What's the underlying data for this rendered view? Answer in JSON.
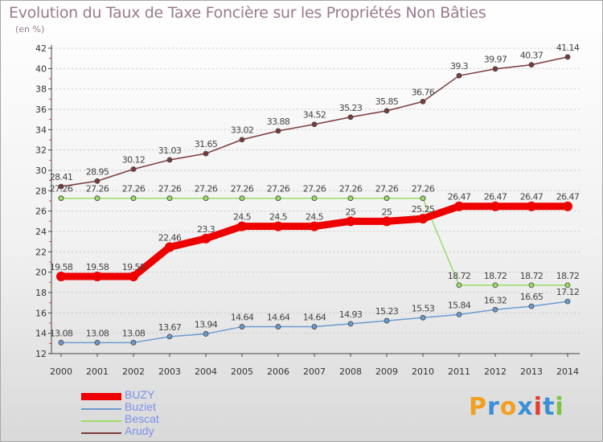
{
  "title": "Evolution du Taux de Taxe Foncière sur les Propriétés Non Bâties",
  "unit_label": "(en %)",
  "chart_data": {
    "type": "line",
    "title": "Evolution du Taux de Taxe Foncière sur les Propriétés Non Bâties",
    "ylabel": "(en %)",
    "xlabel": "",
    "x": [
      "2000",
      "2001",
      "2002",
      "2003",
      "2004",
      "2005",
      "2006",
      "2007",
      "2008",
      "2009",
      "2010",
      "2011",
      "2012",
      "2013",
      "2014"
    ],
    "ylim": [
      12,
      42
    ],
    "yticks": [
      12,
      14,
      16,
      18,
      20,
      22,
      24,
      26,
      28,
      30,
      32,
      34,
      36,
      38,
      40,
      42
    ],
    "grid": "horizontal dotted",
    "legend_position": "bottom-left",
    "series": [
      {
        "name": "BUZY",
        "color": "#ee0000",
        "values": [
          19.58,
          19.58,
          19.58,
          22.46,
          23.3,
          24.5,
          24.5,
          24.5,
          25,
          25,
          25.25,
          26.47,
          26.47,
          26.47,
          26.47
        ],
        "labels": [
          "19.58",
          "19.58",
          "19.58",
          "22.46",
          "23.3",
          "24.5",
          "24.5",
          "24.5",
          "25",
          "25",
          "25.25",
          "26.47",
          "26.47",
          "26.47",
          "26.47"
        ]
      },
      {
        "name": "Buziet",
        "color": "#6b9bd0",
        "values": [
          13.08,
          13.08,
          13.08,
          13.67,
          13.94,
          14.64,
          14.64,
          14.64,
          14.93,
          15.23,
          15.53,
          15.84,
          16.32,
          16.65,
          17.12
        ],
        "labels": [
          "13.08",
          "13.08",
          "13.08",
          "13.67",
          "13.94",
          "14.64",
          "14.64",
          "14.64",
          "14.93",
          "15.23",
          "15.53",
          "15.84",
          "16.32",
          "16.65",
          "17.12"
        ]
      },
      {
        "name": "Bescat",
        "color": "#99dd66",
        "values": [
          27.26,
          27.26,
          27.26,
          27.26,
          27.26,
          27.26,
          27.26,
          27.26,
          27.26,
          27.26,
          27.26,
          18.72,
          18.72,
          18.72,
          18.72
        ],
        "labels": [
          "27.26",
          "27.26",
          "27.26",
          "27.26",
          "27.26",
          "27.26",
          "27.26",
          "27.26",
          "27.26",
          "27.26",
          "27.26",
          "18.72",
          "18.72",
          "18.72",
          "18.72"
        ]
      },
      {
        "name": "Arudy",
        "color": "#7a3b3b",
        "values": [
          28.41,
          28.95,
          30.12,
          31.03,
          31.65,
          33.02,
          33.88,
          34.52,
          35.23,
          35.85,
          36.76,
          39.3,
          39.97,
          40.37,
          41.14
        ],
        "labels": [
          "28.41",
          "28.95",
          "30.12",
          "31.03",
          "31.65",
          "33.02",
          "33.88",
          "34.52",
          "35.23",
          "35.85",
          "36.76",
          "39.3",
          "39.97",
          "40.37",
          "41.14"
        ]
      }
    ]
  },
  "legend": {
    "items": [
      {
        "label": "BUZY",
        "color": "#ee0000"
      },
      {
        "label": "Buziet",
        "color": "#6b9bd0"
      },
      {
        "label": "Bescat",
        "color": "#99dd66"
      },
      {
        "label": "Arudy",
        "color": "#7a3b3b"
      }
    ]
  },
  "logo": {
    "text": "Proxiti",
    "colors": [
      "#f2a020",
      "#3c8fd6",
      "#f2a020",
      "#3c8fd6",
      "#e33b2e",
      "#3c8fd6",
      "#7cc242"
    ]
  }
}
